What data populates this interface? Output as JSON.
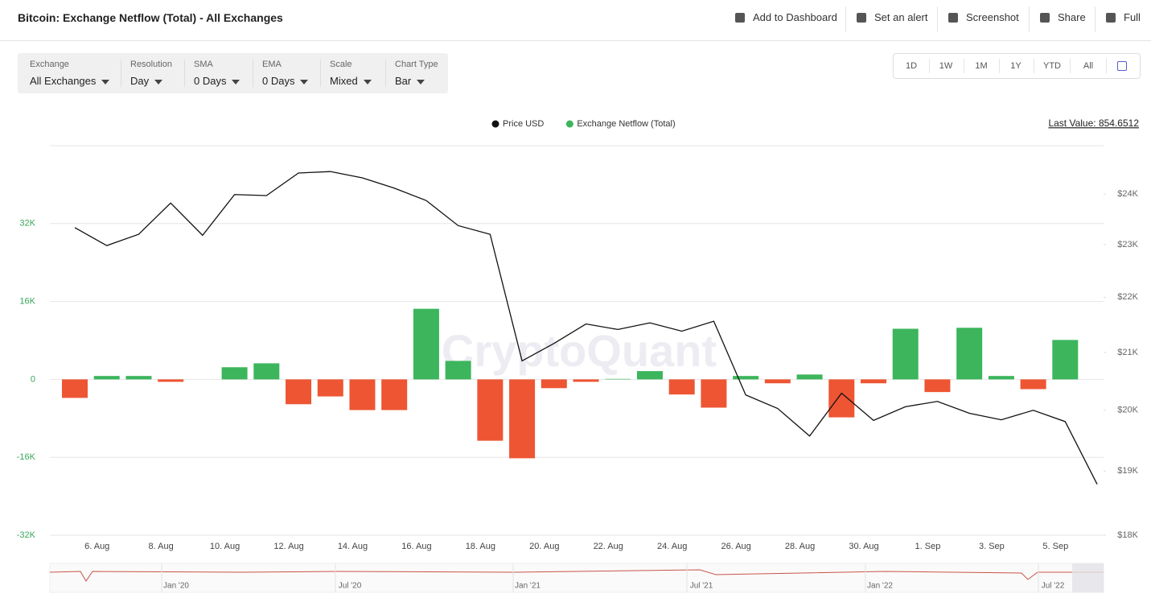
{
  "header": {
    "title": "Bitcoin: Exchange Netflow (Total) - All Exchanges",
    "actions": [
      "Add to Dashboard",
      "Set an alert",
      "Screenshot",
      "Share",
      "Full"
    ]
  },
  "controls": [
    {
      "label": "Exchange",
      "value": "All Exchanges"
    },
    {
      "label": "Resolution",
      "value": "Day"
    },
    {
      "label": "SMA",
      "value": "0 Days"
    },
    {
      "label": "EMA",
      "value": "0 Days"
    },
    {
      "label": "Scale",
      "value": "Mixed"
    },
    {
      "label": "Chart Type",
      "value": "Bar"
    }
  ],
  "ranges": [
    "1D",
    "1W",
    "1M",
    "1Y",
    "YTD",
    "All"
  ],
  "last_value": "Last Value: 854.6512",
  "watermark": "CryptoQuant",
  "navigator": {
    "labels": [
      "Jan '20",
      "Jul '20",
      "Jan '21",
      "Jul '21",
      "Jan '22",
      "Jul '22"
    ]
  },
  "chart_data": {
    "type": "bar",
    "categories": [
      null,
      "6. Aug",
      null,
      "8. Aug",
      null,
      "10. Aug",
      null,
      "12. Aug",
      null,
      "14. Aug",
      null,
      "16. Aug",
      null,
      "18. Aug",
      null,
      "20. Aug",
      null,
      "22. Aug",
      null,
      "24. Aug",
      null,
      "26. Aug",
      null,
      "28. Aug",
      null,
      "30. Aug",
      null,
      "1. Sep",
      null,
      "3. Sep",
      null,
      "5. Sep",
      null
    ],
    "series": [
      {
        "name": "Exchange Netflow (Total)",
        "type": "bar",
        "color": "#3cb55c",
        "negative_color": "#ee5533",
        "values": [
          -3800,
          700,
          700,
          -500,
          0,
          2500,
          3300,
          -5100,
          -3500,
          -6300,
          -6300,
          14500,
          3800,
          -12600,
          -16200,
          -1800,
          -500,
          100,
          1700,
          -3100,
          -5800,
          700,
          -800,
          1000,
          -7800,
          -800,
          10400,
          -2600,
          10600,
          700,
          -2000,
          8100,
          null
        ]
      },
      {
        "name": "Price USD",
        "type": "line",
        "axis": "y2",
        "color": "#111111",
        "values": [
          23330,
          22980,
          23200,
          23820,
          23180,
          23990,
          23970,
          24430,
          24460,
          24330,
          24120,
          23870,
          23370,
          23200,
          20850,
          21160,
          21510,
          21410,
          21530,
          21380,
          21560,
          20260,
          20030,
          19570,
          20290,
          19830,
          20060,
          20150,
          19950,
          19840,
          20000,
          19810,
          18790
        ]
      }
    ],
    "ylim": [
      -32000,
      48000
    ],
    "yticks": [
      {
        "value": -32000,
        "label": "-32K"
      },
      {
        "value": -16000,
        "label": "-16K"
      },
      0,
      {
        "value": 16000,
        "label": "16K"
      },
      {
        "value": 32000,
        "label": "32K"
      }
    ],
    "y2lim": [
      18000,
      25000
    ],
    "y2scale": "log",
    "y2ticks": [
      {
        "value": 18000,
        "label": "$18K"
      },
      {
        "value": 19000,
        "label": "$19K"
      },
      {
        "value": 20000,
        "label": "$20K"
      },
      {
        "value": 21000,
        "label": "$21K"
      },
      {
        "value": 22000,
        "label": "$22K"
      },
      {
        "value": 23000,
        "label": "$23K"
      },
      {
        "value": 24000,
        "label": "$24K"
      }
    ],
    "grid": true,
    "legend": "top"
  }
}
